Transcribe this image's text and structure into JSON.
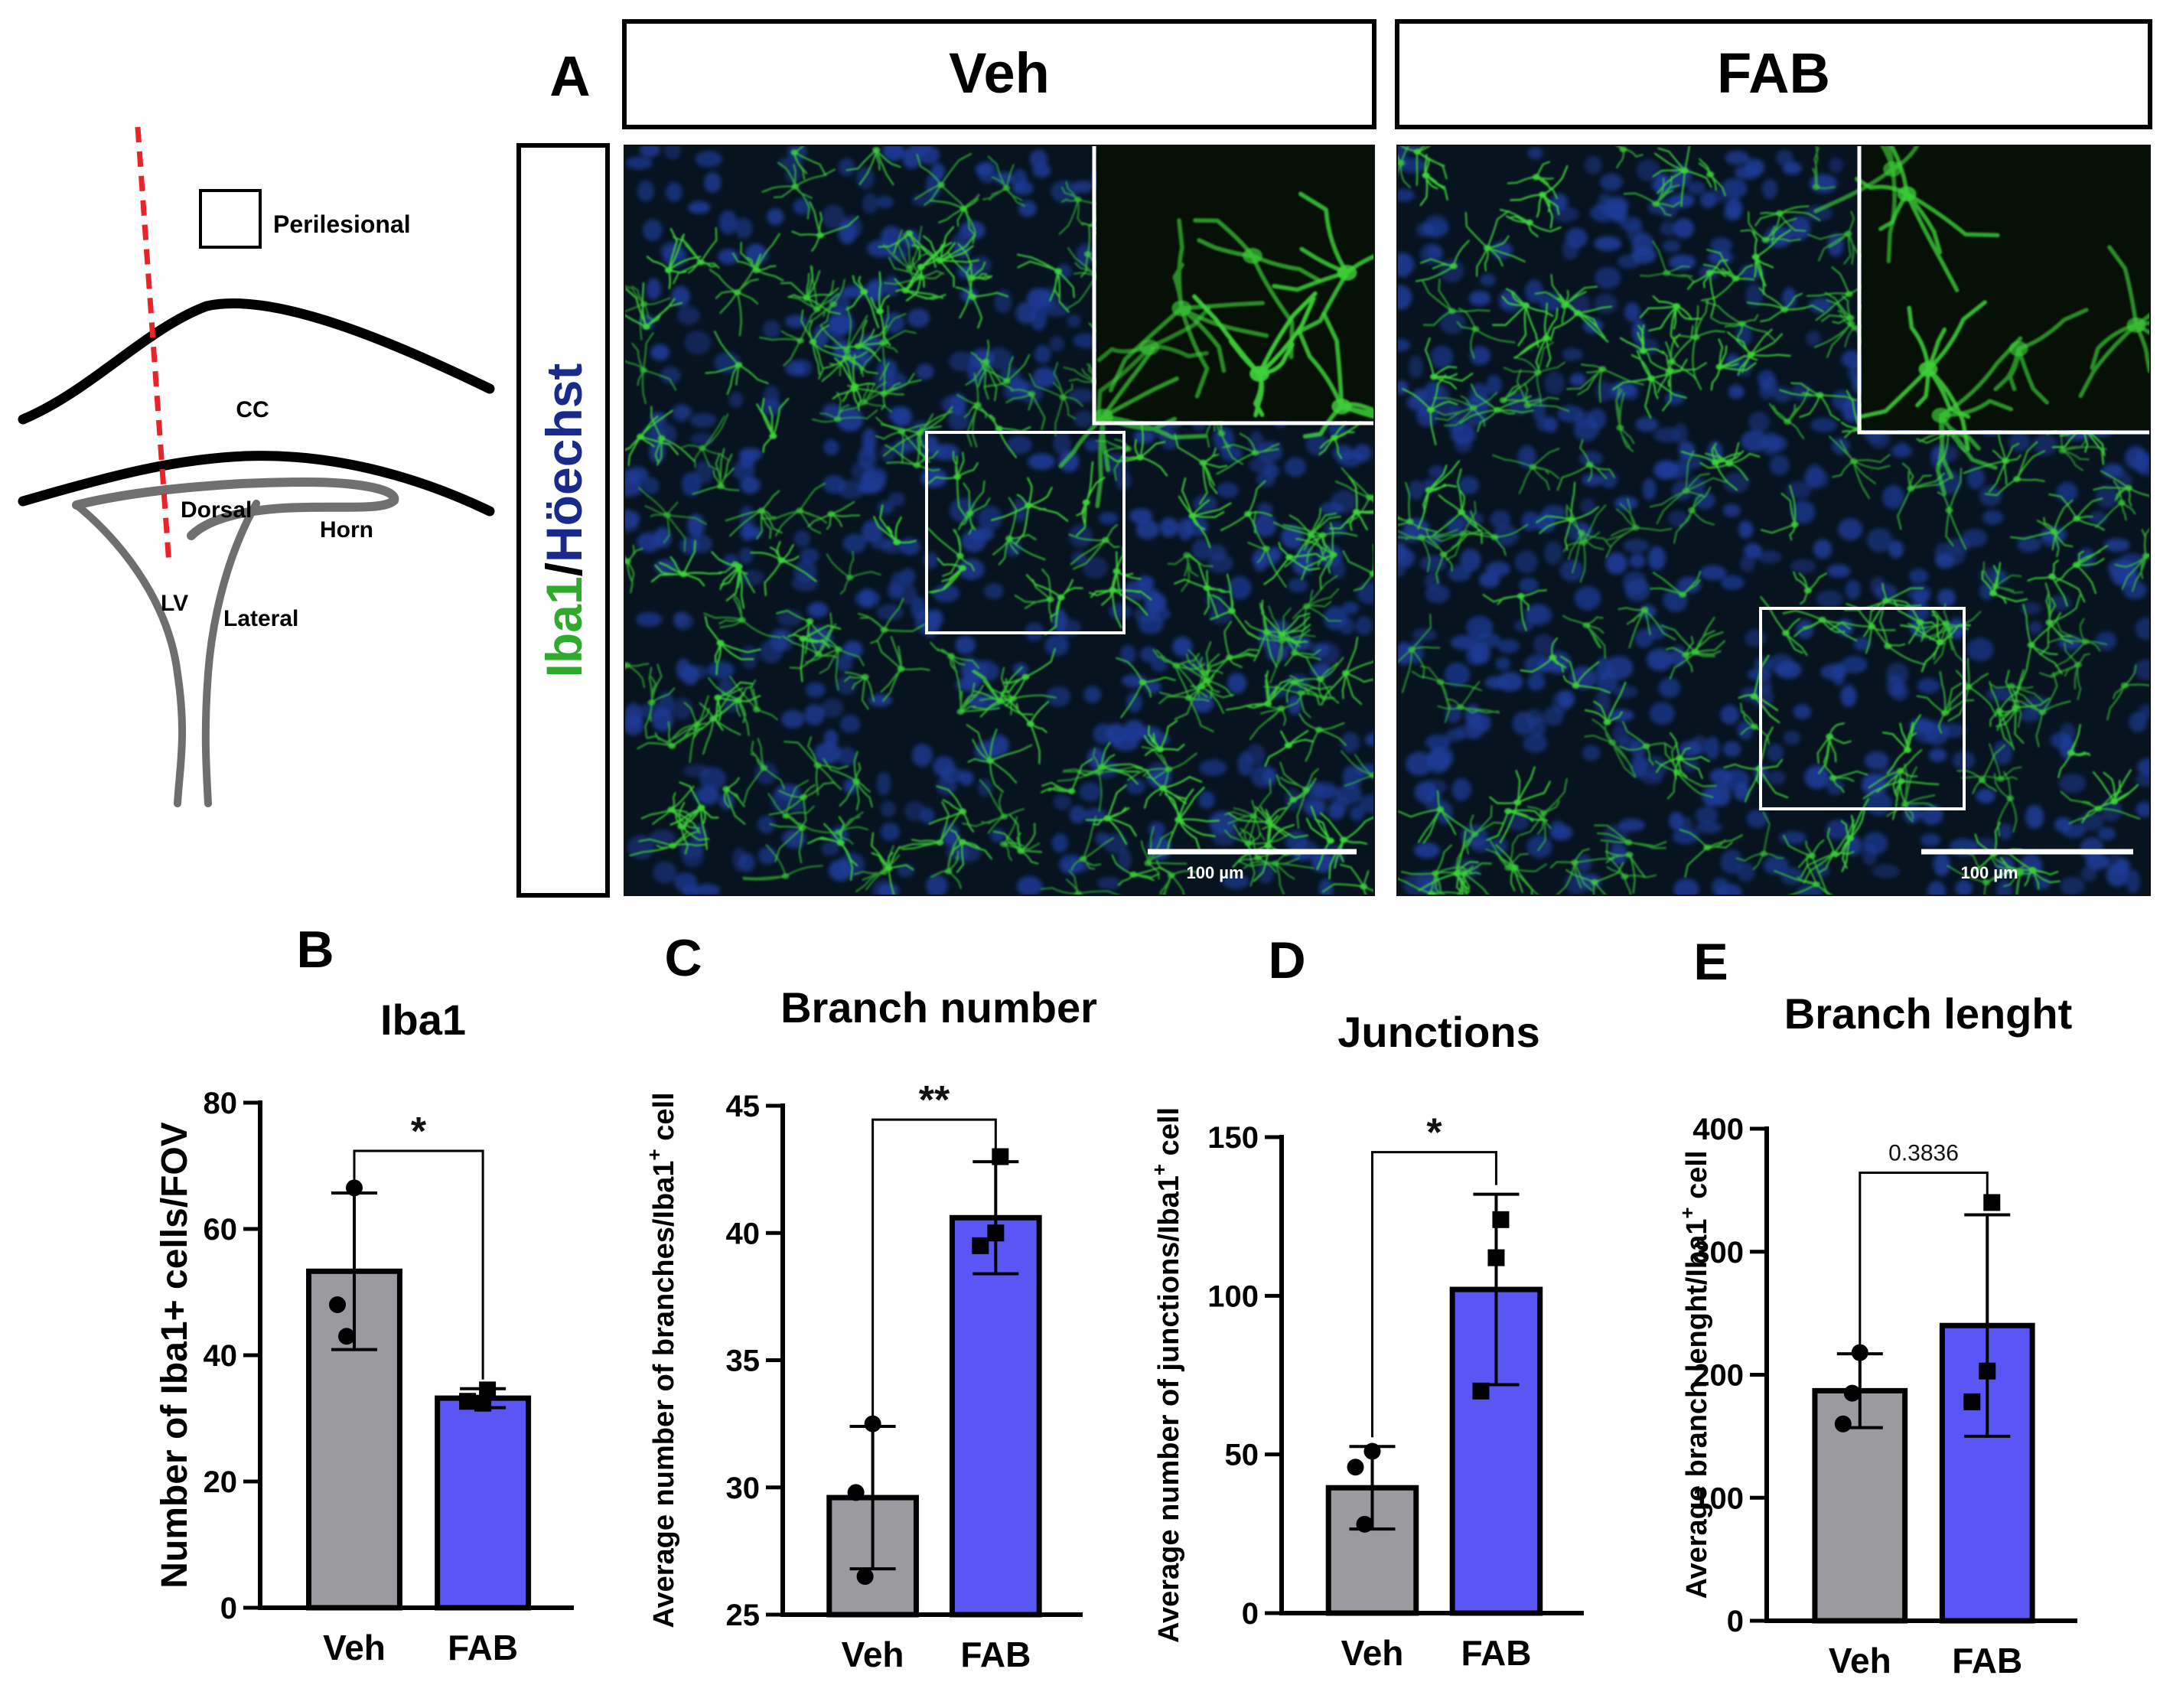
{
  "figure": {
    "panel_A": {
      "letter": "A",
      "col_headers": [
        "Veh",
        "FAB"
      ],
      "stain_label": {
        "part1": "Iba1",
        "sep": "/",
        "part2": "Höechst",
        "color1": "#2faa2a",
        "color2": "#1a2a8a"
      },
      "scale_bar_label": "100 µm",
      "micrograph_colors": {
        "background": "#071420",
        "nuclei": "#1e3c98",
        "microglia": "#3ed23a"
      }
    },
    "diagram": {
      "legend_label": "Perilesional",
      "labels": {
        "cc": "CC",
        "dorsal": "Dorsal",
        "horn": "Horn",
        "lv": "LV",
        "lateral": "Lateral"
      },
      "cut_line_color": "#e8242a"
    },
    "colors": {
      "veh_bar": "#9b9b9f",
      "fab_bar": "#5a55f5"
    }
  },
  "chart_data": [
    {
      "panel": "B",
      "type": "bar",
      "title": "Iba1",
      "categories": [
        "Veh",
        "FAB"
      ],
      "values": [
        53.3,
        33.2
      ],
      "errors": [
        12.4,
        1.5
      ],
      "points": [
        [
          66.5,
          48.0,
          43.0
        ],
        [
          34.5,
          32.4,
          32.7
        ]
      ],
      "ylabel": "Number of Iba1+ cells/FOV",
      "ylim": [
        0,
        80
      ],
      "yticks": [
        0,
        20,
        40,
        60,
        80
      ],
      "significance": "*"
    },
    {
      "panel": "C",
      "type": "bar",
      "title": "Branch number",
      "categories": [
        "Veh",
        "FAB"
      ],
      "values": [
        29.6,
        40.6
      ],
      "errors": [
        2.8,
        2.2
      ],
      "points": [
        [
          32.5,
          29.8,
          26.5
        ],
        [
          43.0,
          40.0,
          39.5
        ]
      ],
      "ylabel": "Average number of branches/Iba1",
      "ylabel_sup": "+",
      "ylabel_end": " cell",
      "ylim": [
        25,
        45
      ],
      "yticks": [
        25,
        30,
        35,
        40,
        45
      ],
      "significance": "**"
    },
    {
      "panel": "D",
      "type": "bar",
      "title": "Junctions",
      "categories": [
        "Veh",
        "FAB"
      ],
      "values": [
        39.5,
        102.0
      ],
      "errors": [
        13.0,
        30.0
      ],
      "points": [
        [
          51.0,
          46.0,
          28.0
        ],
        [
          124.0,
          112.0,
          70.0
        ]
      ],
      "ylabel": "Average number of junctions/Iba1",
      "ylabel_sup": "+",
      "ylabel_end": " cell",
      "ylim": [
        0,
        150
      ],
      "yticks": [
        0,
        50,
        100,
        150
      ],
      "significance": "*"
    },
    {
      "panel": "E",
      "type": "bar",
      "title": "Branch lenght",
      "categories": [
        "Veh",
        "FAB"
      ],
      "values": [
        187.0,
        240.0
      ],
      "errors": [
        30.0,
        90.0
      ],
      "points": [
        [
          218.0,
          160.0,
          185.0
        ],
        [
          340.0,
          203.0,
          178.0
        ]
      ],
      "ylabel": "Average branch lenght/Iba1",
      "ylabel_sup": "+",
      "ylabel_end": " cell",
      "ylim": [
        0,
        400
      ],
      "yticks": [
        0,
        100,
        200,
        300,
        400
      ],
      "significance": "0.3836"
    }
  ]
}
